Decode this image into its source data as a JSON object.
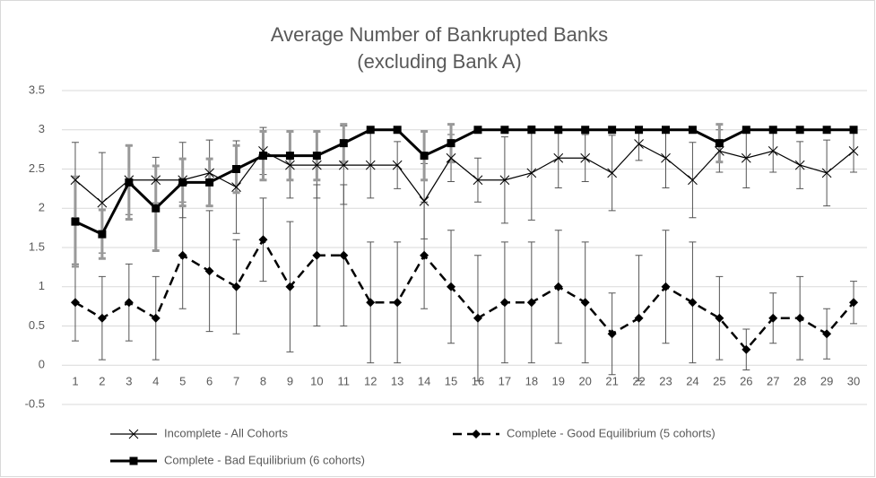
{
  "chart_data": {
    "type": "line",
    "title": "Average Number of Bankrupted Banks",
    "subtitle": "(excluding Bank A)",
    "categories": [
      "1",
      "2",
      "3",
      "4",
      "5",
      "6",
      "7",
      "8",
      "9",
      "10",
      "11",
      "12",
      "13",
      "14",
      "15",
      "16",
      "17",
      "18",
      "19",
      "20",
      "21",
      "22",
      "23",
      "24",
      "25",
      "26",
      "27",
      "28",
      "29",
      "30"
    ],
    "ylim": [
      -0.5,
      3.5
    ],
    "yticks": [
      -0.5,
      0,
      0.5,
      1,
      1.5,
      2,
      2.5,
      3,
      3.5
    ],
    "grid": true,
    "legend": "bottom",
    "series": [
      {
        "name": "Incomplete - All Cohorts",
        "color": "#000000",
        "marker": "x",
        "dash": "solid",
        "line_width": 1.2,
        "error_color": "#555555",
        "values": [
          2.36,
          2.07,
          2.36,
          2.36,
          2.36,
          2.45,
          2.27,
          2.73,
          2.55,
          2.55,
          2.55,
          2.55,
          2.55,
          2.09,
          2.64,
          2.36,
          2.36,
          2.45,
          2.64,
          2.64,
          2.45,
          2.82,
          2.64,
          2.36,
          2.73,
          2.64,
          2.73,
          2.55,
          2.45,
          2.73
        ],
        "errors": [
          0.48,
          0.64,
          0.44,
          0.29,
          0.48,
          0.42,
          0.59,
          0.3,
          0.42,
          0.42,
          0.5,
          0.42,
          0.3,
          0.48,
          0.3,
          0.28,
          0.55,
          0.6,
          0.38,
          0.3,
          0.48,
          0.21,
          0.38,
          0.48,
          0.27,
          0.38,
          0.27,
          0.3,
          0.42,
          0.27
        ]
      },
      {
        "name": "Complete - Good Equilibrium (5 cohorts)",
        "color": "#000000",
        "marker": "diamond",
        "dash": "dashed",
        "line_width": 2.5,
        "error_color": "#555555",
        "values": [
          0.8,
          0.6,
          0.8,
          0.6,
          1.4,
          1.2,
          1.0,
          1.6,
          1.0,
          1.4,
          1.4,
          0.8,
          0.8,
          1.4,
          1.0,
          0.6,
          0.8,
          0.8,
          1.0,
          0.8,
          0.4,
          0.6,
          1.0,
          0.8,
          0.6,
          0.2,
          0.6,
          0.6,
          0.4,
          0.8
        ],
        "errors": [
          0.49,
          0.53,
          0.49,
          0.53,
          0.68,
          0.77,
          0.6,
          0.53,
          0.83,
          0.9,
          0.9,
          0.77,
          0.77,
          0.68,
          0.72,
          0.8,
          0.77,
          0.77,
          0.72,
          0.77,
          0.52,
          0.8,
          0.72,
          0.77,
          0.53,
          0.26,
          0.32,
          0.53,
          0.32,
          0.27
        ]
      },
      {
        "name": "Complete - Bad Equilibrium (6 cohorts)",
        "color": "#000000",
        "marker": "square",
        "dash": "solid",
        "line_width": 3,
        "error_color": "#999999",
        "values": [
          1.83,
          1.67,
          2.33,
          2.0,
          2.33,
          2.33,
          2.5,
          2.67,
          2.67,
          2.67,
          2.83,
          3,
          3,
          2.67,
          2.83,
          3,
          3,
          3,
          3,
          3,
          3,
          3,
          3,
          3,
          2.83,
          3,
          3,
          3,
          3,
          3
        ],
        "errors": [
          0.57,
          0.31,
          0.47,
          0.54,
          0.3,
          0.3,
          0.3,
          0.31,
          0.31,
          0.31,
          0.24,
          0,
          0,
          0.31,
          0.24,
          0,
          0,
          0,
          0,
          0,
          0,
          0,
          0,
          0,
          0.24,
          0,
          0,
          0,
          0,
          0
        ]
      }
    ]
  }
}
